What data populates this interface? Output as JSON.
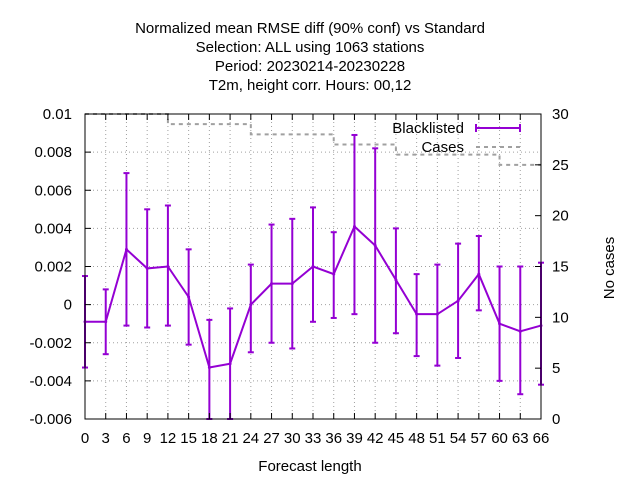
{
  "chart_data": {
    "type": "line",
    "title_lines": [
      "Normalized mean RMSE diff (90% conf) vs Standard",
      "Selection: ALL using  1063 stations",
      "Period: 20230214-20230228",
      "T2m, height corr.   Hours: 00,12"
    ],
    "xlabel": "Forecast length",
    "ylabel": "",
    "y2label": "No cases",
    "x": [
      0,
      3,
      6,
      9,
      12,
      15,
      18,
      21,
      24,
      27,
      30,
      33,
      36,
      39,
      42,
      45,
      48,
      51,
      54,
      57,
      60,
      63,
      66
    ],
    "xlim": [
      0,
      66
    ],
    "ylim": [
      -0.006,
      0.01
    ],
    "y2lim": [
      0,
      30
    ],
    "yticks": [
      "-0.006",
      "-0.004",
      "-0.002",
      "0",
      "0.002",
      "0.004",
      "0.006",
      "0.008",
      "0.01"
    ],
    "y2ticks": [
      "0",
      "5",
      "10",
      "15",
      "20",
      "25",
      "30"
    ],
    "grid": true,
    "legend_position": "top-right",
    "series": [
      {
        "name": "Blacklisted",
        "axis": "y",
        "color": "#9400d3",
        "style": "line-with-errorbars",
        "values": [
          -0.0009,
          -0.0009,
          0.0029,
          0.0019,
          0.002,
          0.0004,
          -0.0033,
          -0.0031,
          0.0,
          0.0011,
          0.0011,
          0.002,
          0.0016,
          0.0041,
          0.0031,
          0.0013,
          -0.0005,
          -0.0005,
          0.0002,
          0.0016,
          -0.001,
          -0.0014,
          -0.0011
        ],
        "err_low": [
          -0.0033,
          -0.0026,
          -0.0011,
          -0.0012,
          -0.0011,
          -0.0021,
          -0.006,
          -0.006,
          -0.0025,
          -0.002,
          -0.0023,
          -0.0009,
          -0.0007,
          -0.0005,
          -0.002,
          -0.0015,
          -0.0027,
          -0.0032,
          -0.0028,
          -0.0003,
          -0.004,
          -0.0047,
          -0.0042
        ],
        "err_high": [
          0.0015,
          0.0008,
          0.0069,
          0.005,
          0.0052,
          0.0029,
          -0.0008,
          -0.0002,
          0.0021,
          0.0042,
          0.0045,
          0.0051,
          0.0038,
          0.0089,
          0.0082,
          0.004,
          0.0016,
          0.0021,
          0.0032,
          0.0036,
          0.002,
          0.002,
          0.0022
        ]
      },
      {
        "name": "Cases",
        "axis": "y2",
        "color": "#a0a0a0",
        "style": "dashed-step",
        "values": [
          30,
          30,
          30,
          30,
          29,
          29,
          29,
          29,
          28,
          28,
          28,
          28,
          27,
          27,
          27,
          26,
          26,
          26,
          26,
          26,
          25,
          25,
          25
        ]
      }
    ]
  }
}
